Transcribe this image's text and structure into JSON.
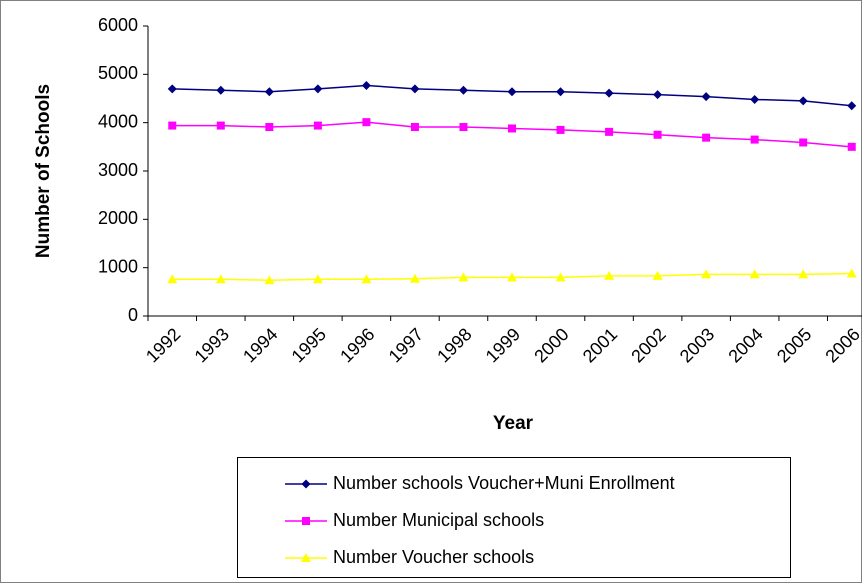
{
  "chart_data": {
    "type": "line",
    "y_label": "Number of Schools",
    "x_label": "Year",
    "categories": [
      "1992",
      "1993",
      "1994",
      "1995",
      "1996",
      "1997",
      "1998",
      "1999",
      "2000",
      "2001",
      "2002",
      "2003",
      "2004",
      "2005",
      "2006"
    ],
    "series": [
      {
        "name": "Number schools Voucher+Muni Enrollment",
        "color": "#000080",
        "marker": "diamond",
        "values": [
          4700,
          4670,
          4640,
          4700,
          4770,
          4700,
          4670,
          4640,
          4640,
          4610,
          4580,
          4540,
          4480,
          4450,
          4350
        ]
      },
      {
        "name": "Number Municipal schools",
        "color": "#ff00ff",
        "marker": "square",
        "values": [
          3940,
          3940,
          3910,
          3940,
          4010,
          3910,
          3910,
          3880,
          3850,
          3810,
          3750,
          3690,
          3650,
          3590,
          3500
        ]
      },
      {
        "name": "Number Voucher schools",
        "color": "#ffff00",
        "marker": "triangle",
        "values": [
          760,
          760,
          740,
          760,
          760,
          770,
          800,
          800,
          800,
          830,
          830,
          860,
          860,
          860,
          880
        ]
      }
    ],
    "ylim": [
      0,
      6000
    ],
    "yticks": [
      0,
      1000,
      2000,
      3000,
      4000,
      5000,
      6000
    ],
    "grid": false,
    "legend": "bottom"
  }
}
